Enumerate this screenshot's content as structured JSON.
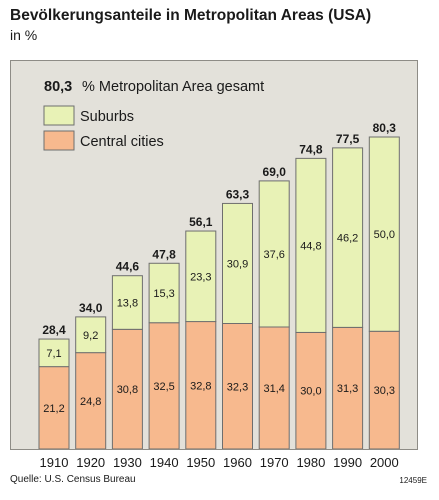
{
  "header": {
    "title": "Bevölkerungsanteile in Metropolitan Areas (USA)",
    "subtitle": "in %"
  },
  "note": {
    "value": "80,3",
    "text": "% Metropolitan Area gesamt"
  },
  "footer": {
    "source": "Quelle: U.S. Census Bureau",
    "code": "12459E"
  },
  "colors": {
    "suburbs": "#e8f2b6",
    "central": "#f7b98e",
    "outline": "#6e6e6e",
    "panel": "#e3e1da"
  },
  "chart_data": {
    "type": "bar",
    "stacked": true,
    "categories": [
      "1910",
      "1920",
      "1930",
      "1940",
      "1950",
      "1960",
      "1970",
      "1980",
      "1990",
      "2000"
    ],
    "series": [
      {
        "name": "Central cities",
        "values": [
          21.2,
          24.8,
          30.8,
          32.5,
          32.8,
          32.3,
          31.4,
          30.0,
          31.3,
          30.3
        ],
        "labels": [
          "21,2",
          "24,8",
          "30,8",
          "32,5",
          "32,8",
          "32,3",
          "31,4",
          "30,0",
          "31,3",
          "30,3"
        ]
      },
      {
        "name": "Suburbs",
        "values": [
          7.1,
          9.2,
          13.8,
          15.3,
          23.3,
          30.9,
          37.6,
          44.8,
          46.2,
          50.0
        ],
        "labels": [
          "7,1",
          "9,2",
          "13,8",
          "15,3",
          "23,3",
          "30,9",
          "37,6",
          "44,8",
          "46,2",
          "50,0"
        ]
      }
    ],
    "totals": [
      28.4,
      34.0,
      44.6,
      47.8,
      56.1,
      63.3,
      69.0,
      74.8,
      77.5,
      80.3
    ],
    "total_labels": [
      "28,4",
      "34,0",
      "44,6",
      "47,8",
      "56,1",
      "63,3",
      "69,0",
      "74,8",
      "77,5",
      "80,3"
    ],
    "legend": [
      "Suburbs",
      "Central cities"
    ],
    "legend_position": "top-left",
    "ylim": [
      0,
      80.3
    ],
    "grid": false
  }
}
